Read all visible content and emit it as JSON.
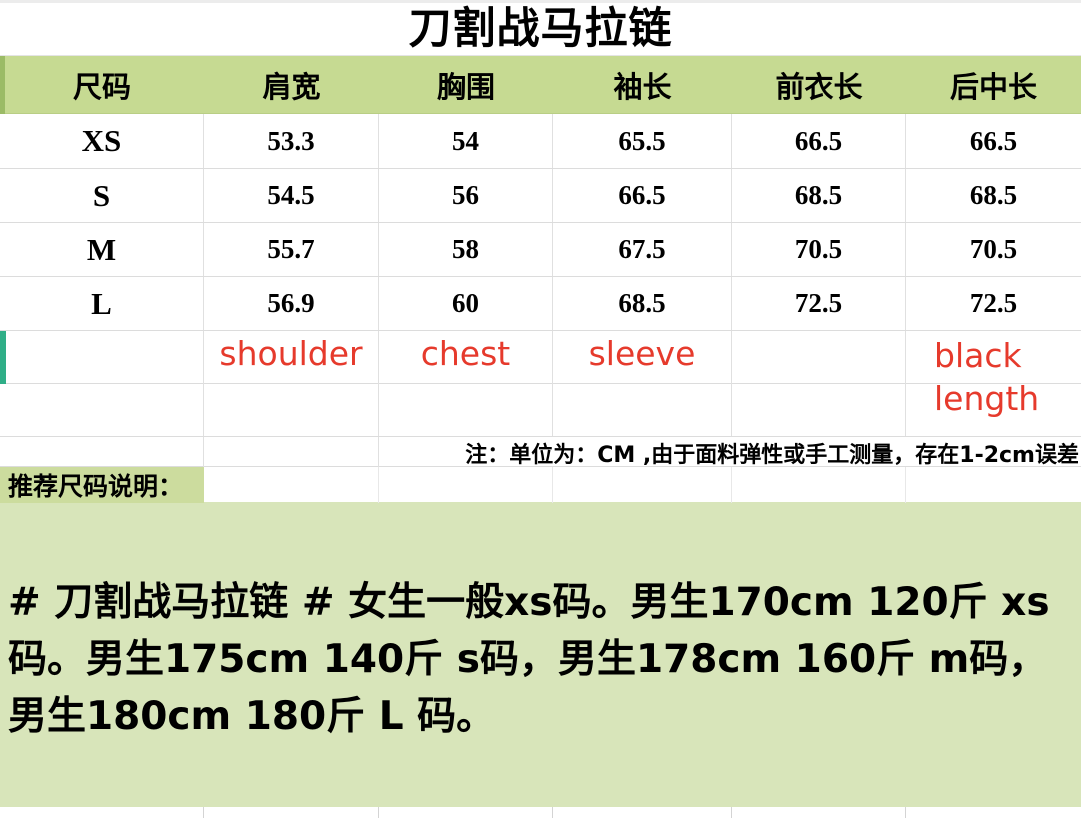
{
  "title": "刀割战马拉链",
  "table": {
    "headers": [
      "尺码",
      "肩宽",
      "胸围",
      "袖长",
      "前衣长",
      "后中长"
    ],
    "rows": [
      {
        "size": "XS",
        "values": [
          "53.3",
          "54",
          "65.5",
          "66.5",
          "66.5"
        ]
      },
      {
        "size": "S",
        "values": [
          "54.5",
          "56",
          "66.5",
          "68.5",
          "68.5"
        ]
      },
      {
        "size": "M",
        "values": [
          "55.7",
          "58",
          "67.5",
          "70.5",
          "70.5"
        ]
      },
      {
        "size": "L",
        "values": [
          "56.9",
          "60",
          "68.5",
          "72.5",
          "72.5"
        ]
      }
    ],
    "annotations": [
      "",
      "shoulder",
      "chest",
      "sleeve",
      "",
      "black\nlength"
    ],
    "note": "注：单位为：CM ,由于面料弹性或手工测量，存在1-2cm误差"
  },
  "recommend": {
    "label": "推荐尺码说明：",
    "text": "# 刀割战马拉链 # 女生一般xs码。男生170cm 120斤 xs码。男生175cm 140斤 s码，男生178cm 160斤 m码，男生180cm 180斤 L 码。"
  },
  "colors": {
    "header_green": "#c6da92",
    "label_green": "#ccdc9e",
    "block_green": "#d8e5ba",
    "annotation_red": "#e63a2c",
    "selection_teal": "#2fae87",
    "gridline": "#dcdcdc"
  },
  "units": "CM"
}
